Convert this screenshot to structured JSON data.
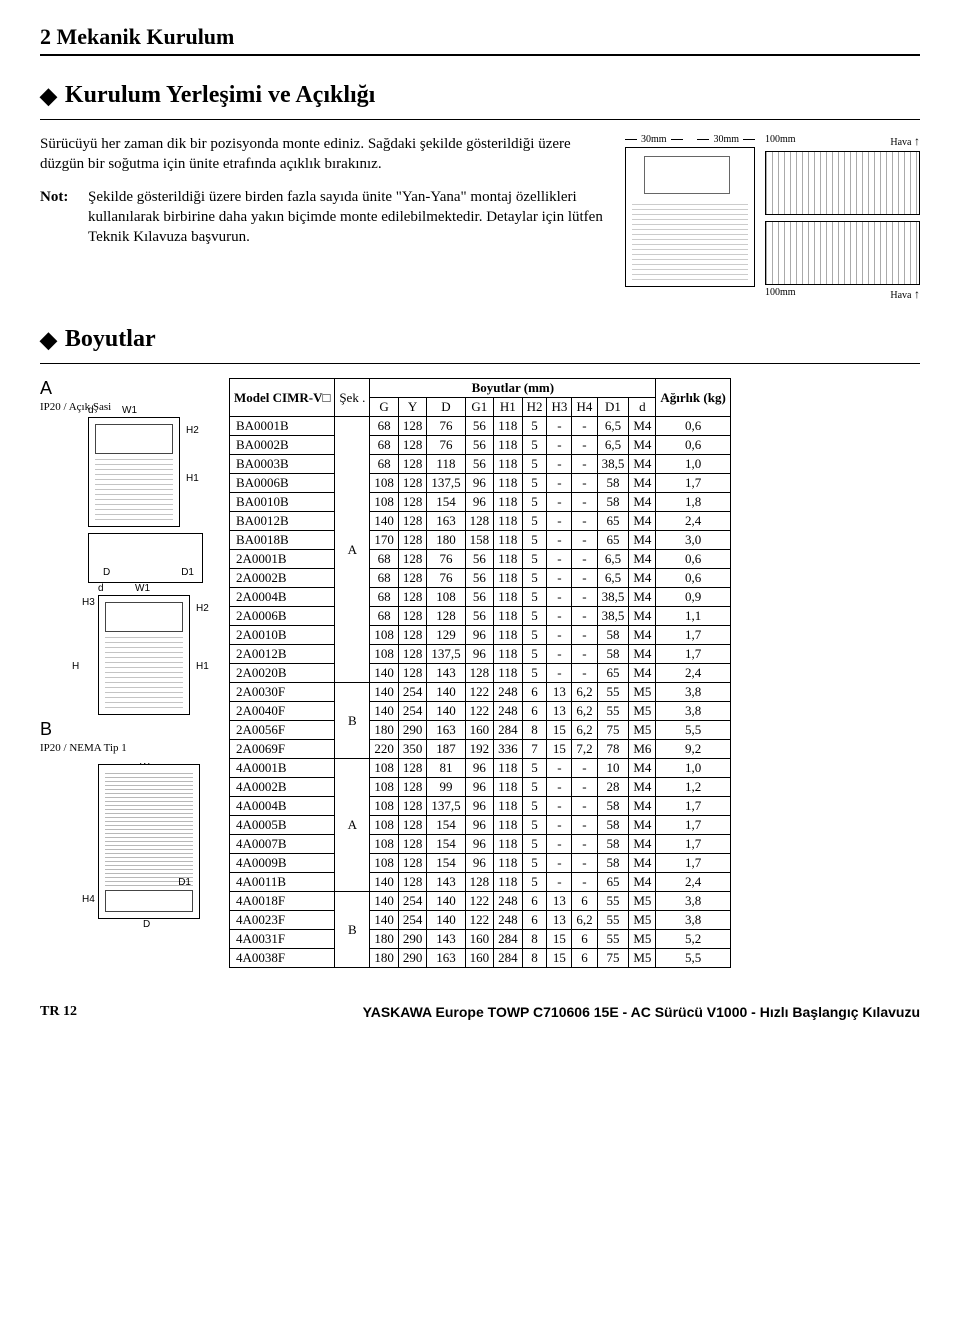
{
  "chapter": "2 Mekanik Kurulum",
  "sect1": "Kurulum Yerleşimi ve Açıklığı",
  "para1": "Sürücüyü her zaman dik bir pozisyonda monte ediniz. Sağdaki şekilde gösterildiği üzere düzgün bir soğutma için ünite etrafında açıklık bırakınız.",
  "noteLbl": "Not:",
  "noteTxt": "Şekilde gösterildiği üzere birden fazla sayıda ünite \"Yan-Yana\" montaj özellikleri kullanılarak birbirine daha yakın biçimde monte edilebilmektedir. Detaylar için lütfen Teknik Kılavuza başvurun.",
  "clr": {
    "l": "30mm",
    "r": "30mm",
    "t": "100mm",
    "b": "100mm",
    "air": "Hava"
  },
  "sect2": "Boyutlar",
  "lblA": "A",
  "subA": "IP20 / Açık Şasi",
  "lblB": "B",
  "subB": "IP20 / NEMA Tip 1",
  "dimLabels": {
    "d": "d",
    "W1": "W1",
    "W": "W",
    "H2": "H2",
    "H1": "H1",
    "H": "H",
    "H3": "H3",
    "H4": "H4",
    "D": "D",
    "D1": "D1"
  },
  "thead": {
    "model": "Model CIMR-V□",
    "bmm": "Boyutlar (mm)",
    "sek": "Şek .",
    "G": "G",
    "Y": "Y",
    "D": "D",
    "G1": "G1",
    "H1": "H1",
    "H2": "H2",
    "H3": "H3",
    "H4": "H4",
    "D1": "D1",
    "dd": "d",
    "wt": "Ağırlık (kg)"
  },
  "rows": [
    [
      "BA0001B",
      "A",
      "68",
      "128",
      "76",
      "56",
      "118",
      "5",
      "-",
      "-",
      "6,5",
      "M4",
      "0,6"
    ],
    [
      "BA0002B",
      "A",
      "68",
      "128",
      "76",
      "56",
      "118",
      "5",
      "-",
      "-",
      "6,5",
      "M4",
      "0,6"
    ],
    [
      "BA0003B",
      "A",
      "68",
      "128",
      "118",
      "56",
      "118",
      "5",
      "-",
      "-",
      "38,5",
      "M4",
      "1,0"
    ],
    [
      "BA0006B",
      "A",
      "108",
      "128",
      "137,5",
      "96",
      "118",
      "5",
      "-",
      "-",
      "58",
      "M4",
      "1,7"
    ],
    [
      "BA0010B",
      "A",
      "108",
      "128",
      "154",
      "96",
      "118",
      "5",
      "-",
      "-",
      "58",
      "M4",
      "1,8"
    ],
    [
      "BA0012B",
      "A",
      "140",
      "128",
      "163",
      "128",
      "118",
      "5",
      "-",
      "-",
      "65",
      "M4",
      "2,4"
    ],
    [
      "BA0018B",
      "A",
      "170",
      "128",
      "180",
      "158",
      "118",
      "5",
      "-",
      "-",
      "65",
      "M4",
      "3,0"
    ],
    [
      "2A0001B",
      "A",
      "68",
      "128",
      "76",
      "56",
      "118",
      "5",
      "-",
      "-",
      "6,5",
      "M4",
      "0,6"
    ],
    [
      "2A0002B",
      "A",
      "68",
      "128",
      "76",
      "56",
      "118",
      "5",
      "-",
      "-",
      "6,5",
      "M4",
      "0,6"
    ],
    [
      "2A0004B",
      "A",
      "68",
      "128",
      "108",
      "56",
      "118",
      "5",
      "-",
      "-",
      "38,5",
      "M4",
      "0,9"
    ],
    [
      "2A0006B",
      "A",
      "68",
      "128",
      "128",
      "56",
      "118",
      "5",
      "-",
      "-",
      "38,5",
      "M4",
      "1,1"
    ],
    [
      "2A0010B",
      "A",
      "108",
      "128",
      "129",
      "96",
      "118",
      "5",
      "-",
      "-",
      "58",
      "M4",
      "1,7"
    ],
    [
      "2A0012B",
      "A",
      "108",
      "128",
      "137,5",
      "96",
      "118",
      "5",
      "-",
      "-",
      "58",
      "M4",
      "1,7"
    ],
    [
      "2A0020B",
      "A",
      "140",
      "128",
      "143",
      "128",
      "118",
      "5",
      "-",
      "-",
      "65",
      "M4",
      "2,4"
    ],
    [
      "2A0030F",
      "B",
      "140",
      "254",
      "140",
      "122",
      "248",
      "6",
      "13",
      "6,2",
      "55",
      "M5",
      "3,8"
    ],
    [
      "2A0040F",
      "B",
      "140",
      "254",
      "140",
      "122",
      "248",
      "6",
      "13",
      "6,2",
      "55",
      "M5",
      "3,8"
    ],
    [
      "2A0056F",
      "B",
      "180",
      "290",
      "163",
      "160",
      "284",
      "8",
      "15",
      "6,2",
      "75",
      "M5",
      "5,5"
    ],
    [
      "2A0069F",
      "B",
      "220",
      "350",
      "187",
      "192",
      "336",
      "7",
      "15",
      "7,2",
      "78",
      "M6",
      "9,2"
    ],
    [
      "4A0001B",
      "A",
      "108",
      "128",
      "81",
      "96",
      "118",
      "5",
      "-",
      "-",
      "10",
      "M4",
      "1,0"
    ],
    [
      "4A0002B",
      "A",
      "108",
      "128",
      "99",
      "96",
      "118",
      "5",
      "-",
      "-",
      "28",
      "M4",
      "1,2"
    ],
    [
      "4A0004B",
      "A",
      "108",
      "128",
      "137,5",
      "96",
      "118",
      "5",
      "-",
      "-",
      "58",
      "M4",
      "1,7"
    ],
    [
      "4A0005B",
      "A",
      "108",
      "128",
      "154",
      "96",
      "118",
      "5",
      "-",
      "-",
      "58",
      "M4",
      "1,7"
    ],
    [
      "4A0007B",
      "A",
      "108",
      "128",
      "154",
      "96",
      "118",
      "5",
      "-",
      "-",
      "58",
      "M4",
      "1,7"
    ],
    [
      "4A0009B",
      "A",
      "108",
      "128",
      "154",
      "96",
      "118",
      "5",
      "-",
      "-",
      "58",
      "M4",
      "1,7"
    ],
    [
      "4A0011B",
      "A",
      "140",
      "128",
      "143",
      "128",
      "118",
      "5",
      "-",
      "-",
      "65",
      "M4",
      "2,4"
    ],
    [
      "4A0018F",
      "B",
      "140",
      "254",
      "140",
      "122",
      "248",
      "6",
      "13",
      "6",
      "55",
      "M5",
      "3,8"
    ],
    [
      "4A0023F",
      "B",
      "140",
      "254",
      "140",
      "122",
      "248",
      "6",
      "13",
      "6,2",
      "55",
      "M5",
      "3,8"
    ],
    [
      "4A0031F",
      "B",
      "180",
      "290",
      "143",
      "160",
      "284",
      "8",
      "15",
      "6",
      "55",
      "M5",
      "5,2"
    ],
    [
      "4A0038F",
      "B",
      "180",
      "290",
      "163",
      "160",
      "284",
      "8",
      "15",
      "6",
      "75",
      "M5",
      "5,5"
    ]
  ],
  "sekGroups": [
    {
      "label": "A",
      "span": 14
    },
    {
      "label": "B",
      "span": 4
    },
    {
      "label": "A",
      "span": 7
    },
    {
      "label": "B",
      "span": 4
    }
  ],
  "footer": {
    "left": "TR 12",
    "brand": "YASKAWA Europe",
    "rest": " TOWP C710606 15E - AC Sürücü V1000 - Hızlı Başlangıç Kılavuzu"
  }
}
